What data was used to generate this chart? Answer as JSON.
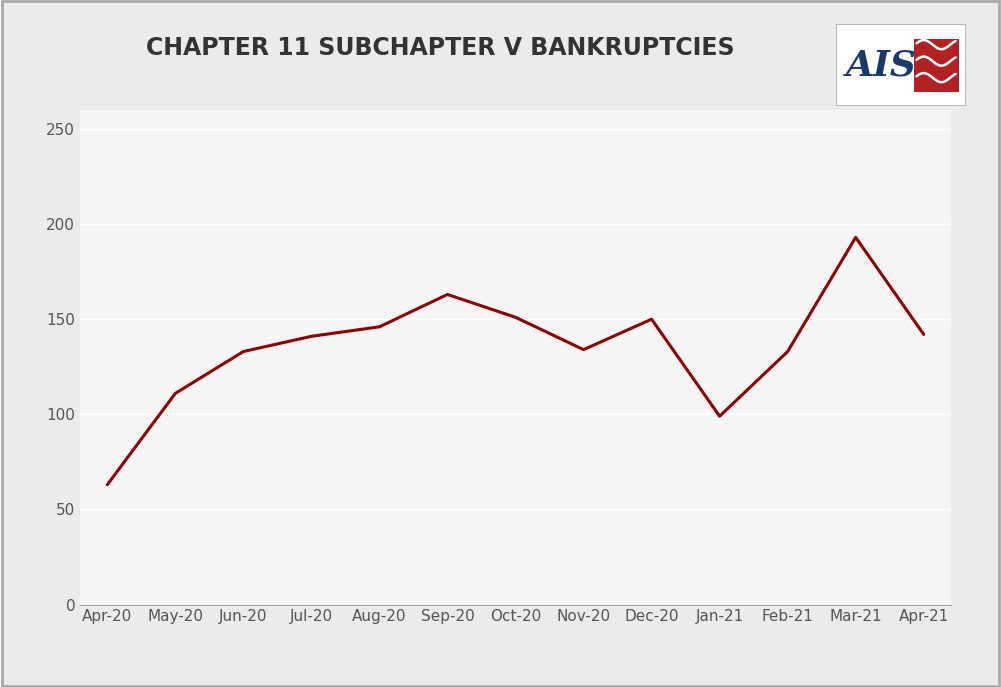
{
  "title": "CHAPTER 11 SUBCHAPTER V BANKRUPTCIES",
  "x_labels": [
    "Apr-20",
    "May-20",
    "Jun-20",
    "Jul-20",
    "Aug-20",
    "Sep-20",
    "Oct-20",
    "Nov-20",
    "Dec-20",
    "Jan-21",
    "Feb-21",
    "Mar-21",
    "Apr-21"
  ],
  "y_values": [
    63,
    111,
    133,
    141,
    146,
    163,
    151,
    134,
    150,
    99,
    133,
    193,
    142
  ],
  "line_color": "#8B0000",
  "line_width": 2.2,
  "ylim": [
    0,
    260
  ],
  "yticks": [
    0,
    50,
    100,
    150,
    200,
    250
  ],
  "background_color": "#ebebeb",
  "plot_background": "#f5f5f5",
  "grid_color": "#ffffff",
  "title_fontsize": 17,
  "tick_fontsize": 11,
  "border_color": "#aaaaaa",
  "ais_text_color": "#1a3a6b",
  "ais_box_color": "#b22222"
}
